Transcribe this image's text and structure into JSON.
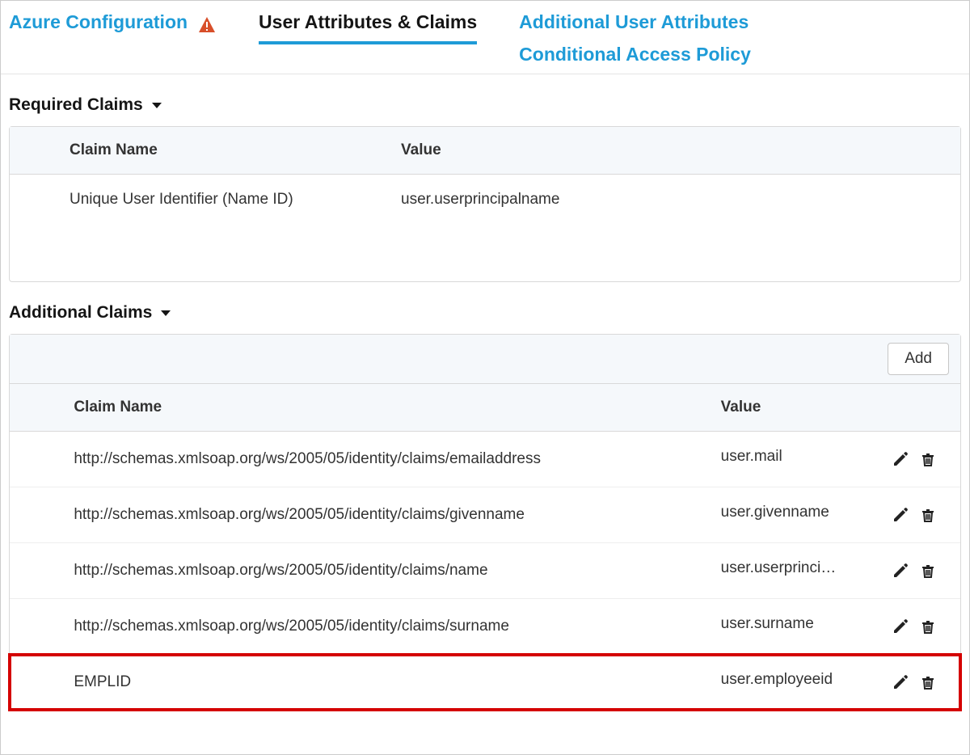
{
  "colors": {
    "link_blue": "#1e9bd7",
    "text_dark": "#151515",
    "text_body": "#333333",
    "border": "#d9d9d9",
    "header_bg": "#f5f8fb",
    "warn_red": "#d84f2a",
    "highlight_red": "#d40000"
  },
  "tabs": {
    "azure_config": "Azure Configuration",
    "user_attrs": "User Attributes & Claims",
    "addl_user_attrs": "Additional User Attributes",
    "cond_access": "Conditional Access Policy",
    "active_index": 1
  },
  "sections": {
    "required_claims": {
      "title": "Required Claims",
      "columns": {
        "name": "Claim Name",
        "value": "Value"
      },
      "rows": [
        {
          "name": "Unique User Identifier (Name ID)",
          "value": "user.userprincipalname"
        }
      ]
    },
    "additional_claims": {
      "title": "Additional Claims",
      "add_button": "Add",
      "columns": {
        "name": "Claim Name",
        "value": "Value"
      },
      "rows": [
        {
          "name": "http://schemas.xmlsoap.org/ws/2005/05/identity/claims/emailaddress",
          "value": "user.mail",
          "highlight": false
        },
        {
          "name": "http://schemas.xmlsoap.org/ws/2005/05/identity/claims/givenname",
          "value": "user.givenname",
          "highlight": false
        },
        {
          "name": "http://schemas.xmlsoap.org/ws/2005/05/identity/claims/name",
          "value": "user.userprinci…",
          "highlight": false
        },
        {
          "name": "http://schemas.xmlsoap.org/ws/2005/05/identity/claims/surname",
          "value": "user.surname",
          "highlight": false
        },
        {
          "name": "EMPLID",
          "value": "user.employeeid",
          "highlight": true
        }
      ]
    }
  }
}
